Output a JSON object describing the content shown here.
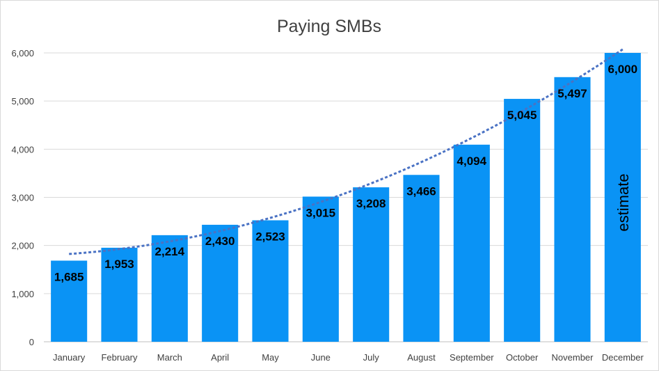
{
  "chart_data": {
    "type": "bar",
    "title": "Paying SMBs",
    "xlabel": "",
    "ylabel": "",
    "categories": [
      "January",
      "February",
      "March",
      "April",
      "May",
      "June",
      "July",
      "August",
      "September",
      "October",
      "November",
      "December"
    ],
    "values": [
      1685,
      1953,
      2214,
      2430,
      2523,
      3015,
      3208,
      3466,
      4094,
      5045,
      5497,
      6000
    ],
    "data_labels": [
      "1,685",
      "1,953",
      "2,214",
      "2,430",
      "2,523",
      "3,015",
      "3,208",
      "3,466",
      "4,094",
      "5,045",
      "5,497",
      "6,000"
    ],
    "ylim": [
      0,
      6000
    ],
    "yticks": [
      0,
      1000,
      2000,
      3000,
      4000,
      5000,
      6000
    ],
    "ytick_labels": [
      "0",
      "1,000",
      "2,000",
      "3,000",
      "4,000",
      "5,000",
      "6,000"
    ],
    "grid": true,
    "legend": "none",
    "trendline": {
      "type": "polynomial",
      "style": "dotted"
    },
    "annotation": {
      "category": "December",
      "text": "estimate"
    },
    "colors": {
      "bar": "#0a93f5",
      "trendline": "#4a72c4",
      "grid": "#d9d9d9",
      "axis": "#bfbfbf",
      "text": "#404040"
    }
  }
}
